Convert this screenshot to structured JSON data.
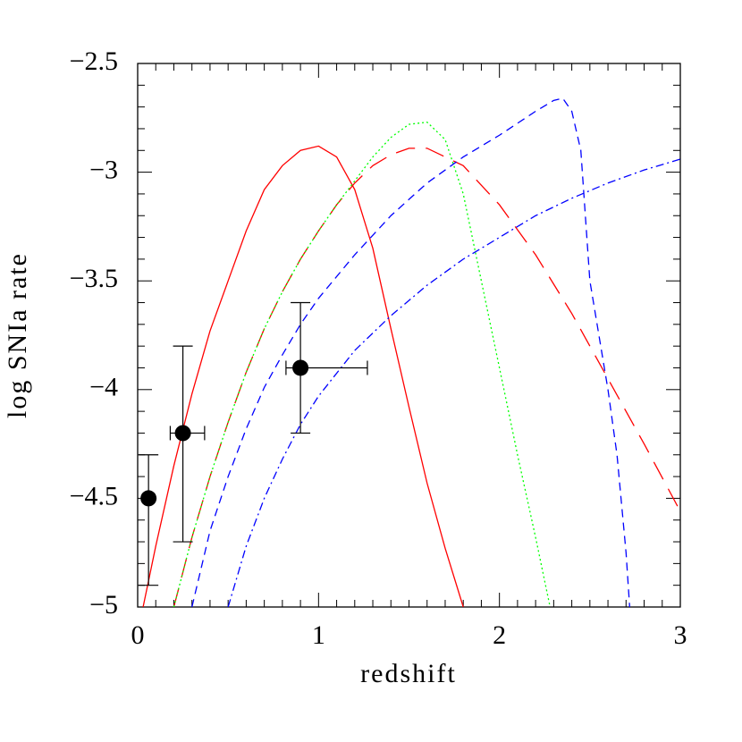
{
  "chart_data": {
    "type": "line",
    "x_label": "redshift",
    "y_label": "log SNIa rate",
    "xlim": [
      0,
      3
    ],
    "ylim": [
      -5,
      -2.5
    ],
    "xticks": [
      0,
      1,
      2,
      3
    ],
    "yticks": [
      {
        "value": -2.5,
        "label": "−2.5"
      },
      {
        "value": -3,
        "label": "−3"
      },
      {
        "value": -3.5,
        "label": "−3.5"
      },
      {
        "value": -4,
        "label": "−4"
      },
      {
        "value": -4.5,
        "label": "−4.5"
      },
      {
        "value": -5,
        "label": "−5"
      }
    ],
    "series": [
      {
        "color": "#ff0000",
        "style": "solid",
        "x": [
          0.03,
          0.1,
          0.2,
          0.3,
          0.4,
          0.5,
          0.6,
          0.7,
          0.8,
          0.9,
          1.0,
          1.1,
          1.2,
          1.3,
          1.4,
          1.5,
          1.6,
          1.7,
          1.8
        ],
        "values": [
          -5.0,
          -4.72,
          -4.35,
          -4.02,
          -3.73,
          -3.5,
          -3.27,
          -3.08,
          -2.97,
          -2.9,
          -2.88,
          -2.93,
          -3.08,
          -3.35,
          -3.72,
          -4.08,
          -4.43,
          -4.73,
          -5.0
        ]
      },
      {
        "color": "#ff0000",
        "style": "long-dash",
        "x": [
          0.2,
          0.3,
          0.4,
          0.5,
          0.6,
          0.7,
          0.8,
          0.9,
          1.0,
          1.1,
          1.2,
          1.3,
          1.4,
          1.5,
          1.6,
          1.8,
          2.0,
          2.2,
          2.4,
          2.6,
          2.8,
          3.0
        ],
        "values": [
          -5.0,
          -4.68,
          -4.4,
          -4.15,
          -3.92,
          -3.72,
          -3.55,
          -3.4,
          -3.27,
          -3.15,
          -3.05,
          -2.97,
          -2.92,
          -2.89,
          -2.89,
          -2.97,
          -3.15,
          -3.38,
          -3.65,
          -3.95,
          -4.25,
          -4.56
        ]
      },
      {
        "color": "#00ff00",
        "style": "dotted",
        "x": [
          0.2,
          0.3,
          0.4,
          0.5,
          0.6,
          0.7,
          0.8,
          0.9,
          1.0,
          1.1,
          1.2,
          1.3,
          1.4,
          1.5,
          1.6,
          1.7,
          1.8,
          1.9,
          2.0,
          2.1,
          2.2,
          2.28
        ],
        "values": [
          -5.0,
          -4.68,
          -4.4,
          -4.15,
          -3.92,
          -3.72,
          -3.55,
          -3.4,
          -3.27,
          -3.15,
          -3.04,
          -2.93,
          -2.84,
          -2.78,
          -2.77,
          -2.85,
          -3.1,
          -3.5,
          -3.9,
          -4.3,
          -4.68,
          -5.0
        ]
      },
      {
        "color": "#0000ff",
        "style": "dashed",
        "x": [
          0.3,
          0.4,
          0.5,
          0.6,
          0.7,
          0.8,
          0.9,
          1.0,
          1.2,
          1.4,
          1.6,
          1.8,
          2.0,
          2.2,
          2.3,
          2.35,
          2.4,
          2.45,
          2.5,
          2.6,
          2.65,
          2.7,
          2.72
        ],
        "values": [
          -5.0,
          -4.65,
          -4.4,
          -4.18,
          -3.99,
          -3.84,
          -3.7,
          -3.58,
          -3.38,
          -3.2,
          -3.05,
          -2.93,
          -2.83,
          -2.72,
          -2.67,
          -2.66,
          -2.72,
          -2.9,
          -3.5,
          -4.0,
          -4.3,
          -4.75,
          -5.0
        ]
      },
      {
        "color": "#0000ff",
        "style": "dash-dot",
        "x": [
          0.5,
          0.6,
          0.7,
          0.8,
          0.9,
          1.0,
          1.2,
          1.4,
          1.6,
          1.8,
          2.0,
          2.2,
          2.4,
          2.6,
          2.8,
          3.0
        ],
        "values": [
          -5.0,
          -4.72,
          -4.5,
          -4.32,
          -4.16,
          -4.03,
          -3.82,
          -3.66,
          -3.52,
          -3.4,
          -3.3,
          -3.2,
          -3.12,
          -3.05,
          -2.99,
          -2.94
        ]
      }
    ],
    "points": {
      "color": "#000000",
      "x": [
        0.06,
        0.25,
        0.9
      ],
      "y": [
        -4.5,
        -4.2,
        -3.9
      ],
      "x_err_low": [
        0,
        0.07,
        0.08
      ],
      "x_err_high": [
        0,
        0.12,
        0.37
      ],
      "y_err_low": [
        0.4,
        0.5,
        0.3
      ],
      "y_err_high": [
        0.2,
        0.4,
        0.3
      ]
    }
  }
}
